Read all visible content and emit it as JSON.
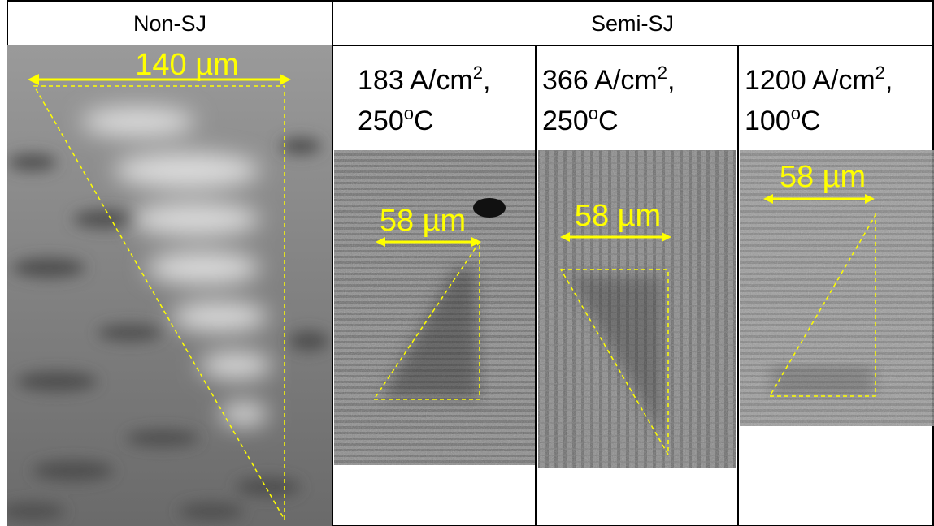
{
  "header": {
    "left": "Non-SJ",
    "right": "Semi-SJ"
  },
  "panels": [
    {
      "scale_label": "140 µm"
    },
    {
      "current": {
        "text": "183 A/cm",
        "sup": "2",
        "suffix": ","
      },
      "temperature": {
        "text": "250",
        "sup": "o",
        "suffix": "C"
      },
      "scale_label": "58 µm"
    },
    {
      "current": {
        "text": "366 A/cm",
        "sup": "2",
        "suffix": ","
      },
      "temperature": {
        "text": "250",
        "sup": "o",
        "suffix": "C"
      },
      "scale_label": "58 µm"
    },
    {
      "current": {
        "text": "1200 A/cm",
        "sup": "2",
        "suffix": ","
      },
      "temperature": {
        "text": "100",
        "sup": "o",
        "suffix": "C"
      },
      "scale_label": "58 µm"
    }
  ]
}
